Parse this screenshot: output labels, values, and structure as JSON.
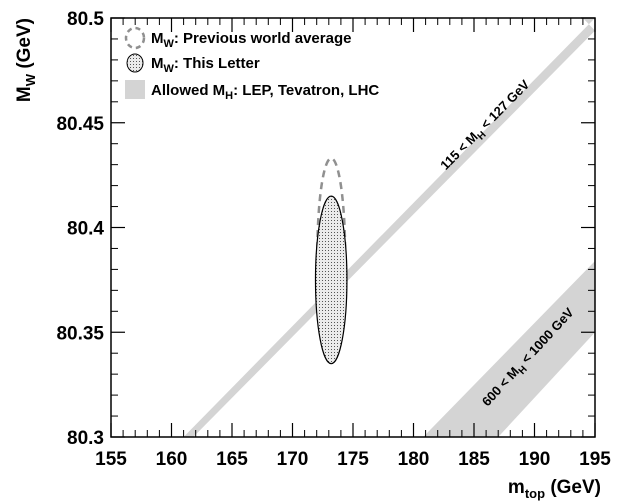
{
  "chart_data": {
    "type": "scatter",
    "title": "",
    "xlabel": {
      "main": "m",
      "sub": "top",
      "unit": " (GeV)"
    },
    "ylabel": {
      "main": "M",
      "sub": "W",
      "unit": " (GeV)"
    },
    "xlim": [
      155,
      195
    ],
    "ylim": [
      80.3,
      80.5
    ],
    "xticks": [
      155,
      160,
      165,
      170,
      175,
      180,
      185,
      190,
      195
    ],
    "xtick_labels": [
      "155",
      "160",
      "165",
      "170",
      "175",
      "180",
      "185",
      "190",
      "195"
    ],
    "yticks": [
      80.3,
      80.35,
      80.4,
      80.45,
      80.5
    ],
    "ytick_labels": [
      "80.3",
      "80.35",
      "80.4",
      "80.45",
      "80.5"
    ],
    "grid": false,
    "legend_position": "top-left",
    "series": [
      {
        "name": {
          "main": "M",
          "sub": "W",
          "rest": ": Previous world average"
        },
        "kind": "ellipse",
        "style": "dashed-gray",
        "center": [
          173.2,
          80.387
        ],
        "halfwidth_x": 1.15,
        "halfwidth_y": 0.046
      },
      {
        "name": {
          "main": "M",
          "sub": "W",
          "rest": ": This Letter"
        },
        "kind": "ellipse",
        "style": "dotted-fill",
        "center": [
          173.2,
          80.375
        ],
        "halfwidth_x": 1.3,
        "halfwidth_y": 0.04
      },
      {
        "name": {
          "main": "Allowed M",
          "sub": "H",
          "rest": ": LEP, Tevatron, LHC"
        },
        "kind": "bands",
        "style": "gray-band"
      }
    ],
    "bands": [
      {
        "label": {
          "pre": "115 < M",
          "sub": "H",
          "post": " < 127 GeV"
        },
        "lower_edge": [
          [
            161.8,
            80.3
          ],
          [
            195,
            80.494
          ]
        ],
        "upper_edge": [
          [
            161.0,
            80.3
          ],
          [
            195,
            80.5
          ],
          [
            194.0,
            80.5
          ]
        ]
      },
      {
        "label": {
          "pre": "600 < M",
          "sub": "H",
          "post": " < 1000 GeV"
        },
        "lower_edge": [
          [
            187.0,
            80.3
          ],
          [
            195,
            80.35
          ]
        ],
        "upper_edge": [
          [
            180.8,
            80.3
          ],
          [
            195,
            80.384
          ]
        ]
      }
    ],
    "colors": {
      "band": "#d4d4d4",
      "dashed": "#909090",
      "ellipse_fill": "#ebebeb",
      "line": "#000000"
    }
  }
}
